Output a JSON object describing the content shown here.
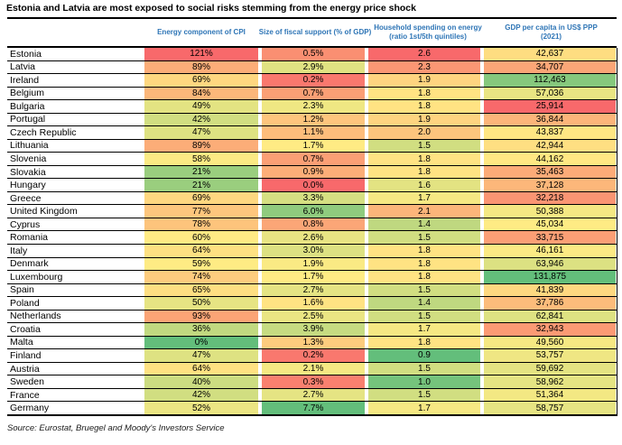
{
  "title": "Estonia and Latvia are most exposed to social risks stemming from the energy price shock",
  "source": "Source: Eurostat, Bruegel and Moody's Investors Service",
  "colors": {
    "header_text_blue": "#2E75B6",
    "border_black": "#000000",
    "scale_red": "#F8696B",
    "scale_yellow": "#FFEB84",
    "scale_green": "#63BE7B"
  },
  "chart_data": {
    "type": "heatmap",
    "title": "Estonia and Latvia are most exposed to social risks stemming from the energy price shock",
    "columns": [
      {
        "key": "cpi",
        "lines": [
          "Energy component of CPI"
        ]
      },
      {
        "key": "fiscal",
        "lines": [
          "Size of fiscal support (% of GDP)"
        ]
      },
      {
        "key": "spending",
        "lines": [
          "Household spending on energy",
          "(ratio 1st/5th quintiles)"
        ]
      },
      {
        "key": "gdp",
        "lines": [
          "GDP per capita in US$ PPP",
          "(2021)"
        ]
      }
    ],
    "rows": [
      {
        "country": "Estonia",
        "cpi": "121%",
        "fiscal": "0.5%",
        "spending": "2.6",
        "gdp": "42,637"
      },
      {
        "country": "Latvia",
        "cpi": "89%",
        "fiscal": "2.9%",
        "spending": "2.3",
        "gdp": "34,707"
      },
      {
        "country": "Ireland",
        "cpi": "69%",
        "fiscal": "0.2%",
        "spending": "1.9",
        "gdp": "112,463"
      },
      {
        "country": "Belgium",
        "cpi": "84%",
        "fiscal": "0.7%",
        "spending": "1.8",
        "gdp": "57,036"
      },
      {
        "country": "Bulgaria",
        "cpi": "49%",
        "fiscal": "2.3%",
        "spending": "1.8",
        "gdp": "25,914"
      },
      {
        "country": "Portugal",
        "cpi": "42%",
        "fiscal": "1.2%",
        "spending": "1.9",
        "gdp": "36,844"
      },
      {
        "country": "Czech Republic",
        "cpi": "47%",
        "fiscal": "1.1%",
        "spending": "2.0",
        "gdp": "43,837"
      },
      {
        "country": "Lithuania",
        "cpi": "89%",
        "fiscal": "1.7%",
        "spending": "1.5",
        "gdp": "42,944"
      },
      {
        "country": "Slovenia",
        "cpi": "58%",
        "fiscal": "0.7%",
        "spending": "1.8",
        "gdp": "44,162"
      },
      {
        "country": "Slovakia",
        "cpi": "21%",
        "fiscal": "0.9%",
        "spending": "1.8",
        "gdp": "35,463"
      },
      {
        "country": "Hungary",
        "cpi": "21%",
        "fiscal": "0.0%",
        "spending": "1.6",
        "gdp": "37,128"
      },
      {
        "country": "Greece",
        "cpi": "69%",
        "fiscal": "3.3%",
        "spending": "1.7",
        "gdp": "32,218"
      },
      {
        "country": "United Kingdom",
        "cpi": "77%",
        "fiscal": "6.0%",
        "spending": "2.1",
        "gdp": "50,388"
      },
      {
        "country": "Cyprus",
        "cpi": "78%",
        "fiscal": "0.8%",
        "spending": "1.4",
        "gdp": "45,034"
      },
      {
        "country": "Romania",
        "cpi": "60%",
        "fiscal": "2.6%",
        "spending": "1.5",
        "gdp": "33,715"
      },
      {
        "country": "Italy",
        "cpi": "64%",
        "fiscal": "3.0%",
        "spending": "1.8",
        "gdp": "46,161"
      },
      {
        "country": "Denmark",
        "cpi": "59%",
        "fiscal": "1.9%",
        "spending": "1.8",
        "gdp": "63,946"
      },
      {
        "country": "Luxembourg",
        "cpi": "74%",
        "fiscal": "1.7%",
        "spending": "1.8",
        "gdp": "131,875"
      },
      {
        "country": "Spain",
        "cpi": "65%",
        "fiscal": "2.7%",
        "spending": "1.5",
        "gdp": "41,839"
      },
      {
        "country": "Poland",
        "cpi": "50%",
        "fiscal": "1.6%",
        "spending": "1.4",
        "gdp": "37,786"
      },
      {
        "country": "Netherlands",
        "cpi": "93%",
        "fiscal": "2.5%",
        "spending": "1.5",
        "gdp": "62,841"
      },
      {
        "country": "Croatia",
        "cpi": "36%",
        "fiscal": "3.9%",
        "spending": "1.7",
        "gdp": "32,943"
      },
      {
        "country": "Malta",
        "cpi": "0%",
        "fiscal": "1.3%",
        "spending": "1.8",
        "gdp": "49,560"
      },
      {
        "country": "Finland",
        "cpi": "47%",
        "fiscal": "0.2%",
        "spending": "0.9",
        "gdp": "53,757"
      },
      {
        "country": "Austria",
        "cpi": "64%",
        "fiscal": "2.1%",
        "spending": "1.5",
        "gdp": "59,692"
      },
      {
        "country": "Sweden",
        "cpi": "40%",
        "fiscal": "0.3%",
        "spending": "1.0",
        "gdp": "58,962"
      },
      {
        "country": "France",
        "cpi": "42%",
        "fiscal": "2.7%",
        "spending": "1.5",
        "gdp": "51,364"
      },
      {
        "country": "Germany",
        "cpi": "52%",
        "fiscal": "7.7%",
        "spending": "1.7",
        "gdp": "58,757"
      }
    ],
    "color_scale": {
      "stops": {
        "cpi": [
          [
            0,
            "#63BE7B"
          ],
          [
            59.5,
            "#FFEB84"
          ],
          [
            121,
            "#F8696B"
          ]
        ],
        "fiscal": [
          [
            0,
            "#F8696B"
          ],
          [
            1.7,
            "#FFEB84"
          ],
          [
            7.7,
            "#63BE7B"
          ]
        ],
        "spending": [
          [
            0.9,
            "#63BE7B"
          ],
          [
            1.75,
            "#FFEB84"
          ],
          [
            2.6,
            "#F8696B"
          ]
        ],
        "gdp": [
          [
            25914,
            "#F8696B"
          ],
          [
            44598,
            "#FFEB84"
          ],
          [
            131875,
            "#63BE7B"
          ]
        ]
      }
    },
    "layout": {
      "grid": "horizontal black row lines",
      "legend": "none"
    }
  }
}
